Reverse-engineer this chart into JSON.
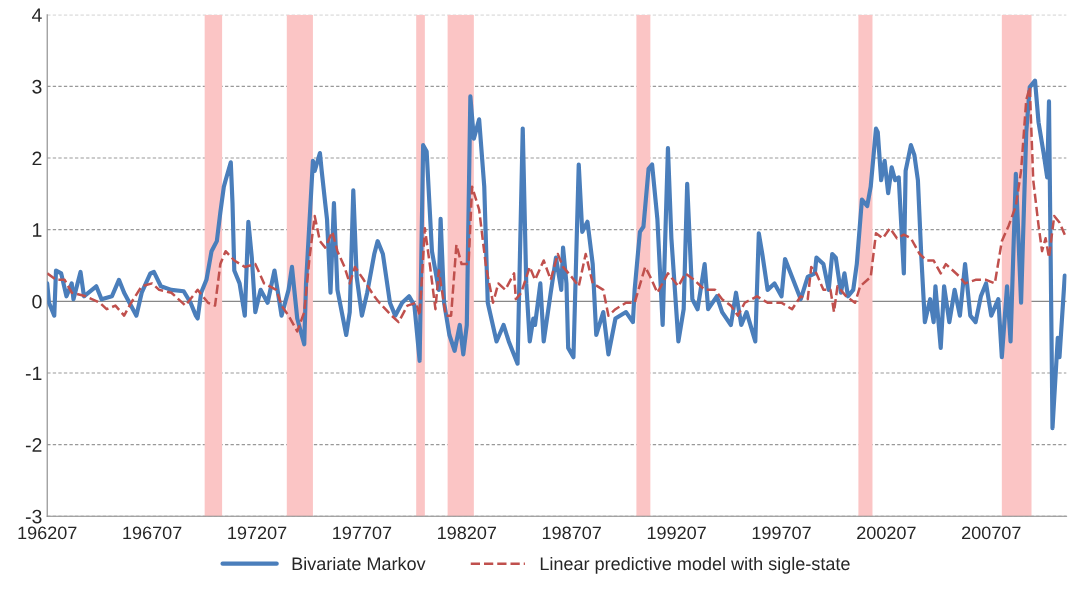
{
  "chart_data": {
    "type": "line",
    "legend": "bottom",
    "grid": "y",
    "xlim": [
      "1962-07",
      "2011-02"
    ],
    "ylim": [
      -3,
      4
    ],
    "yticks": [
      -3,
      -2,
      -1,
      0,
      1,
      2,
      3,
      4
    ],
    "xticks": [
      {
        "value": "1962-07",
        "label": "196207"
      },
      {
        "value": "1967-07",
        "label": "196707"
      },
      {
        "value": "1972-07",
        "label": "197207"
      },
      {
        "value": "1977-07",
        "label": "197707"
      },
      {
        "value": "1982-07",
        "label": "198207"
      },
      {
        "value": "1987-07",
        "label": "198707"
      },
      {
        "value": "1992-07",
        "label": "199207"
      },
      {
        "value": "1997-07",
        "label": "199707"
      },
      {
        "value": "2002-07",
        "label": "200207"
      },
      {
        "value": "2007-07",
        "label": "200707"
      }
    ],
    "bands": [
      {
        "axis": "x",
        "from": "1970-01",
        "to": "1970-11",
        "color": "#fbc5c5"
      },
      {
        "axis": "x",
        "from": "1973-12",
        "to": "1975-03",
        "color": "#fbc5c5"
      },
      {
        "axis": "x",
        "from": "1980-02",
        "to": "1980-07",
        "color": "#fbc5c5"
      },
      {
        "axis": "x",
        "from": "1981-08",
        "to": "1982-11",
        "color": "#fbc5c5"
      },
      {
        "axis": "x",
        "from": "1990-08",
        "to": "1991-04",
        "color": "#fbc5c5"
      },
      {
        "axis": "x",
        "from": "2001-03",
        "to": "2001-11",
        "color": "#fbc5c5"
      },
      {
        "axis": "x",
        "from": "2008-01",
        "to": "2009-06",
        "color": "#fbc5c5"
      }
    ],
    "series": [
      {
        "name": "Bivariate Markov",
        "color": "#4a7ebb",
        "line_style": "solid",
        "x": [
          "1962-07",
          "1962-08",
          "1962-11",
          "1962-12",
          "1963-03",
          "1963-06",
          "1963-09",
          "1963-10",
          "1964-02",
          "1964-04",
          "1964-11",
          "1965-02",
          "1965-08",
          "1965-12",
          "1966-03",
          "1966-10",
          "1967-01",
          "1967-06",
          "1967-08",
          "1967-12",
          "1968-06",
          "1969-01",
          "1969-05",
          "1969-08",
          "1969-09",
          "1969-11",
          "1970-02",
          "1970-05",
          "1970-08",
          "1970-10",
          "1970-12",
          "1971-01",
          "1971-04",
          "1971-05",
          "1971-06",
          "1971-09",
          "1971-12",
          "1972-02",
          "1972-04",
          "1972-06",
          "1972-09",
          "1973-01",
          "1973-05",
          "1973-09",
          "1974-01",
          "1974-03",
          "1974-06",
          "1974-10",
          "1974-11",
          "1975-03",
          "1975-04",
          "1975-07",
          "1975-08",
          "1975-10",
          "1975-11",
          "1976-01",
          "1976-03",
          "1976-05",
          "1976-10",
          "1976-12",
          "1977-02",
          "1977-04",
          "1977-07",
          "1977-10",
          "1978-02",
          "1978-04",
          "1978-07",
          "1978-11",
          "1979-02",
          "1979-06",
          "1979-10",
          "1980-01",
          "1980-04",
          "1980-06",
          "1980-08",
          "1980-11",
          "1981-03",
          "1981-04",
          "1981-06",
          "1981-09",
          "1981-12",
          "1982-03",
          "1982-05",
          "1982-07",
          "1982-09",
          "1982-11",
          "1983-02",
          "1983-05",
          "1983-07",
          "1983-12",
          "1984-04",
          "1984-07",
          "1984-12",
          "1985-03",
          "1985-05",
          "1985-07",
          "1985-09",
          "1985-10",
          "1986-01",
          "1986-03",
          "1986-07",
          "1986-10",
          "1987-01",
          "1987-02",
          "1987-04",
          "1987-05",
          "1987-08",
          "1987-11",
          "1988-01",
          "1988-04",
          "1988-07",
          "1988-09",
          "1989-01",
          "1989-04",
          "1989-08",
          "1990-02",
          "1990-06",
          "1990-07",
          "1990-10",
          "1990-12",
          "1991-03",
          "1991-05",
          "1991-08",
          "1991-11",
          "1992-02",
          "1992-04",
          "1992-08",
          "1992-11",
          "1993-01",
          "1993-04",
          "1993-07",
          "1993-11",
          "1994-01",
          "1994-06",
          "1994-09",
          "1995-02",
          "1995-05",
          "1995-08",
          "1995-11",
          "1996-04",
          "1996-06",
          "1996-08",
          "1996-11",
          "1997-03",
          "1997-07",
          "1997-09",
          "1998-01",
          "1998-06",
          "1998-10",
          "1999-02",
          "1999-03",
          "1999-07",
          "1999-10",
          "1999-12",
          "2000-02",
          "2000-05",
          "2000-07",
          "2000-09",
          "2000-12",
          "2001-02",
          "2001-05",
          "2001-08",
          "2001-10",
          "2002-01",
          "2002-02",
          "2002-04",
          "2002-06",
          "2002-08",
          "2002-10",
          "2002-12",
          "2003-02",
          "2003-05",
          "2003-06",
          "2003-09",
          "2003-11",
          "2004-01",
          "2004-03",
          "2004-05",
          "2004-08",
          "2004-10",
          "2004-11",
          "2005-02",
          "2005-04",
          "2005-07",
          "2005-10",
          "2006-01",
          "2006-04",
          "2006-07",
          "2006-10",
          "2007-01",
          "2007-04",
          "2007-07",
          "2007-11",
          "2008-01",
          "2008-04",
          "2008-06",
          "2008-09",
          "2008-12",
          "2009-03",
          "2009-05",
          "2009-08",
          "2009-10",
          "2010-01",
          "2010-03",
          "2010-04",
          "2010-06",
          "2010-09",
          "2010-10",
          "2011-01"
        ],
        "values": [
          0.25,
          -0.02,
          -0.2,
          0.43,
          0.39,
          0.07,
          0.25,
          0.03,
          0.41,
          0.07,
          0.21,
          0.03,
          0.07,
          0.3,
          0.12,
          -0.2,
          0.12,
          0.39,
          0.41,
          0.21,
          0.16,
          0.14,
          -0.02,
          -0.2,
          -0.24,
          0.12,
          0.3,
          0.7,
          0.84,
          1.24,
          1.6,
          1.69,
          1.94,
          1.37,
          0.43,
          0.25,
          -0.2,
          1.11,
          0.61,
          -0.15,
          0.16,
          -0.02,
          0.43,
          -0.2,
          0.16,
          0.48,
          -0.24,
          -0.6,
          0.25,
          1.96,
          1.82,
          2.07,
          1.82,
          1.37,
          1.15,
          0.12,
          1.37,
          0.16,
          -0.47,
          -0.15,
          1.55,
          0.34,
          -0.2,
          0.12,
          0.66,
          0.84,
          0.66,
          -0.02,
          -0.2,
          -0.02,
          0.07,
          -0.06,
          -0.83,
          2.18,
          2.09,
          0.7,
          0.16,
          1.15,
          -0.02,
          -0.47,
          -0.69,
          -0.33,
          -0.74,
          -0.33,
          2.86,
          2.27,
          2.54,
          1.6,
          -0.02,
          -0.56,
          -0.33,
          -0.56,
          -0.87,
          2.41,
          0.25,
          -0.56,
          -0.24,
          -0.33,
          0.25,
          -0.56,
          0.12,
          0.61,
          0.16,
          0.75,
          0.25,
          -0.65,
          -0.78,
          1.91,
          0.97,
          1.11,
          0.52,
          -0.47,
          -0.15,
          -0.74,
          -0.24,
          -0.15,
          -0.29,
          0.16,
          0.97,
          1.04,
          1.85,
          1.91,
          1.15,
          -0.33,
          2.14,
          0.88,
          -0.56,
          -0.11,
          1.64,
          0.03,
          -0.11,
          0.52,
          -0.11,
          0.07,
          -0.15,
          -0.33,
          0.12,
          -0.33,
          -0.15,
          -0.56,
          0.95,
          0.66,
          0.16,
          0.25,
          0.07,
          0.59,
          0.34,
          0.03,
          0.34,
          0.39,
          0.61,
          0.52,
          0.16,
          0.66,
          0.61,
          0.12,
          0.39,
          0.07,
          0.16,
          0.52,
          1.42,
          1.33,
          1.6,
          2.41,
          2.36,
          1.69,
          1.96,
          1.51,
          1.87,
          1.69,
          1.73,
          0.39,
          1.82,
          2.18,
          2.04,
          1.69,
          0.61,
          -0.29,
          0.03,
          -0.29,
          0.21,
          -0.65,
          0.21,
          -0.29,
          0.16,
          -0.2,
          0.52,
          -0.2,
          -0.29,
          0.07,
          0.25,
          -0.2,
          0.03,
          -0.78,
          0.21,
          -0.56,
          1.78,
          -0.02,
          2.36,
          2.99,
          3.08,
          2.5,
          2.05,
          1.73,
          2.79,
          -1.77,
          -0.51,
          -0.78,
          0.36
        ]
      },
      {
        "name": "Linear predictive model with sigle-state",
        "color": "#c0504d",
        "line_style": "dashed",
        "x": [
          "1962-07",
          "1962-12",
          "1963-05",
          "1963-09",
          "1964-05",
          "1965-01",
          "1965-05",
          "1965-10",
          "1966-03",
          "1966-07",
          "1967-01",
          "1967-07",
          "1967-11",
          "1968-06",
          "1969-02",
          "1969-09",
          "1970-03",
          "1970-07",
          "1970-10",
          "1971-01",
          "1971-06",
          "1971-12",
          "1972-06",
          "1972-11",
          "1973-06",
          "1973-09",
          "1974-01",
          "1974-06",
          "1974-10",
          "1975-01",
          "1975-04",
          "1975-07",
          "1975-10",
          "1976-02",
          "1976-05",
          "1976-09",
          "1976-12",
          "1977-03",
          "1977-08",
          "1978-02",
          "1978-05",
          "1978-12",
          "1979-04",
          "1979-09",
          "1980-02",
          "1980-04",
          "1980-07",
          "1980-10",
          "1981-01",
          "1981-03",
          "1981-07",
          "1981-10",
          "1982-01",
          "1982-04",
          "1982-08",
          "1982-10",
          "1983-02",
          "1983-06",
          "1983-10",
          "1984-01",
          "1984-05",
          "1984-10",
          "1984-11",
          "1985-02",
          "1985-07",
          "1985-10",
          "1986-03",
          "1986-07",
          "1986-11",
          "1987-02",
          "1987-07",
          "1987-11",
          "1988-03",
          "1988-07",
          "1989-01",
          "1989-04",
          "1989-08",
          "1990-02",
          "1990-07",
          "1991-01",
          "1991-04",
          "1991-08",
          "1992-02",
          "1992-08",
          "1992-12",
          "1993-05",
          "1993-11",
          "1994-05",
          "1994-09",
          "1995-02",
          "1995-06",
          "1995-10",
          "1996-05",
          "1996-11",
          "1997-07",
          "1998-01",
          "1998-06",
          "1998-10",
          "1998-12",
          "1999-03",
          "1999-07",
          "1999-11",
          "2000-01",
          "2000-03",
          "2000-08",
          "2001-01",
          "2001-04",
          "2001-10",
          "2002-01",
          "2002-05",
          "2002-09",
          "2003-01",
          "2003-05",
          "2003-09",
          "2004-02",
          "2004-06",
          "2004-10",
          "2005-02",
          "2005-05",
          "2005-09",
          "2006-01",
          "2006-04",
          "2006-10",
          "2007-04",
          "2007-09",
          "2008-01",
          "2008-05",
          "2008-09",
          "2008-12",
          "2009-03",
          "2009-05",
          "2009-07",
          "2009-10",
          "2009-12",
          "2010-02",
          "2010-04",
          "2010-07",
          "2010-10",
          "2011-01"
        ],
        "values": [
          0.39,
          0.3,
          0.3,
          0.12,
          0.07,
          -0.02,
          -0.11,
          -0.06,
          -0.2,
          -0.02,
          0.21,
          0.25,
          0.16,
          0.12,
          -0.06,
          0.16,
          -0.02,
          -0.06,
          0.52,
          0.7,
          0.57,
          0.48,
          0.52,
          0.25,
          0.16,
          -0.06,
          -0.2,
          -0.42,
          -0.15,
          0.61,
          1.19,
          0.84,
          0.75,
          0.97,
          0.7,
          0.48,
          0.25,
          0.48,
          0.3,
          0.07,
          -0.02,
          -0.2,
          -0.29,
          -0.06,
          -0.02,
          -0.2,
          1.02,
          0.48,
          -0.11,
          0.43,
          -0.2,
          -0.2,
          0.79,
          0.52,
          0.52,
          1.6,
          1.28,
          0.48,
          -0.02,
          0.25,
          0.16,
          0.39,
          0.03,
          0.12,
          0.48,
          0.3,
          0.57,
          0.3,
          0.66,
          0.48,
          0.34,
          0.21,
          0.66,
          0.25,
          0.16,
          -0.2,
          -0.11,
          -0.02,
          -0.02,
          0.48,
          0.34,
          0.12,
          0.39,
          0.21,
          0.39,
          0.3,
          0.16,
          0.16,
          0.03,
          -0.06,
          -0.2,
          -0.02,
          0.07,
          -0.02,
          -0.02,
          -0.11,
          0.07,
          0.03,
          0.48,
          0.39,
          0.16,
          0.16,
          -0.15,
          0.21,
          0.07,
          -0.02,
          0.21,
          0.34,
          0.95,
          0.88,
          1.02,
          0.88,
          0.93,
          0.88,
          0.66,
          0.57,
          0.57,
          0.39,
          0.52,
          0.43,
          0.34,
          0.25,
          0.3,
          0.3,
          0.25,
          0.84,
          1.06,
          1.33,
          1.82,
          2.81,
          2.99,
          1.69,
          1.06,
          0.7,
          0.88,
          0.61,
          1.19,
          1.1,
          0.93
        ]
      }
    ]
  }
}
